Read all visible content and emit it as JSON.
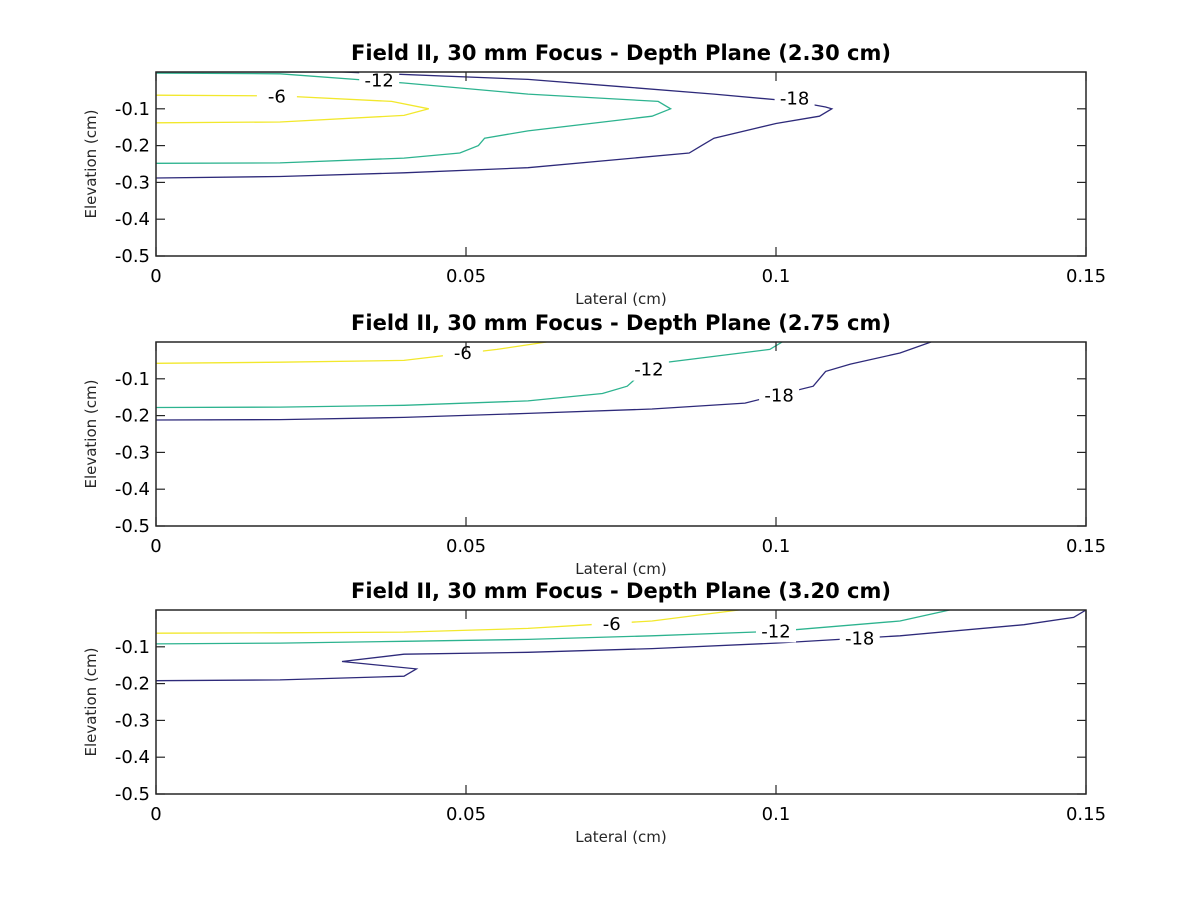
{
  "chart_data": [
    {
      "type": "contour",
      "title": "Field II, 30 mm Focus - Depth Plane (2.30 cm)",
      "xlabel": "Lateral (cm)",
      "ylabel": "Elevation (cm)",
      "xlim": [
        0,
        0.15
      ],
      "ylim": [
        -0.5,
        0
      ],
      "xticks": [
        "0",
        "0.05",
        "0.1",
        "0.15"
      ],
      "yticks": [
        "-0.1",
        "-0.2",
        "-0.3",
        "-0.4",
        "-0.5"
      ],
      "levels": [
        {
          "level": "-6",
          "color": "#F2E82C",
          "label_pos": [
            0.0195,
            -0.066
          ],
          "points": [
            [
              0,
              -0.063
            ],
            [
              0.02,
              -0.065
            ],
            [
              0.038,
              -0.08
            ],
            [
              0.044,
              -0.1
            ],
            [
              0.04,
              -0.118
            ],
            [
              0.02,
              -0.136
            ],
            [
              0,
              -0.138
            ]
          ]
        },
        {
          "level": "-12",
          "color": "#2DB38F",
          "label_pos": [
            0.036,
            -0.023
          ],
          "points": [
            [
              0,
              -0.003
            ],
            [
              0.02,
              -0.005
            ],
            [
              0.04,
              -0.03
            ],
            [
              0.06,
              -0.06
            ],
            [
              0.081,
              -0.08
            ],
            [
              0.083,
              -0.1
            ],
            [
              0.08,
              -0.12
            ],
            [
              0.06,
              -0.16
            ],
            [
              0.053,
              -0.18
            ],
            [
              0.052,
              -0.2
            ],
            [
              0.049,
              -0.22
            ],
            [
              0.04,
              -0.234
            ],
            [
              0.02,
              -0.247
            ],
            [
              0,
              -0.248
            ]
          ]
        },
        {
          "level": "-18",
          "color": "#2E2A7A",
          "label_pos": [
            0.103,
            -0.072
          ],
          "points": [
            [
              0,
              0.0
            ],
            [
              0.03,
              0.0
            ],
            [
              0.06,
              -0.02
            ],
            [
              0.075,
              -0.04
            ],
            [
              0.09,
              -0.06
            ],
            [
              0.103,
              -0.08
            ],
            [
              0.108,
              -0.095
            ],
            [
              0.109,
              -0.1
            ],
            [
              0.107,
              -0.12
            ],
            [
              0.1,
              -0.14
            ],
            [
              0.09,
              -0.18
            ],
            [
              0.088,
              -0.2
            ],
            [
              0.086,
              -0.22
            ],
            [
              0.06,
              -0.26
            ],
            [
              0.04,
              -0.274
            ],
            [
              0.02,
              -0.284
            ],
            [
              0,
              -0.288
            ]
          ]
        }
      ]
    },
    {
      "type": "contour",
      "title": "Field II, 30 mm Focus - Depth Plane (2.75 cm)",
      "xlabel": "Lateral (cm)",
      "ylabel": "Elevation (cm)",
      "xlim": [
        0,
        0.15
      ],
      "ylim": [
        -0.5,
        0
      ],
      "xticks": [
        "0",
        "0.05",
        "0.1",
        "0.15"
      ],
      "yticks": [
        "-0.1",
        "-0.2",
        "-0.3",
        "-0.4",
        "-0.5"
      ],
      "levels": [
        {
          "level": "-6",
          "color": "#F2E82C",
          "label_pos": [
            0.0495,
            -0.03
          ],
          "points": [
            [
              0,
              -0.058
            ],
            [
              0.02,
              -0.055
            ],
            [
              0.04,
              -0.05
            ],
            [
              0.055,
              -0.02
            ],
            [
              0.063,
              0.0
            ]
          ]
        },
        {
          "level": "-12",
          "color": "#2DB38F",
          "label_pos": [
            0.0795,
            -0.075
          ],
          "points": [
            [
              0,
              -0.178
            ],
            [
              0.02,
              -0.177
            ],
            [
              0.04,
              -0.172
            ],
            [
              0.06,
              -0.16
            ],
            [
              0.072,
              -0.14
            ],
            [
              0.076,
              -0.12
            ],
            [
              0.08,
              -0.06
            ],
            [
              0.099,
              -0.02
            ],
            [
              0.101,
              0.0
            ]
          ]
        },
        {
          "level": "-18",
          "color": "#2E2A7A",
          "label_pos": [
            0.1005,
            -0.145
          ],
          "points": [
            [
              0,
              -0.212
            ],
            [
              0.02,
              -0.211
            ],
            [
              0.04,
              -0.205
            ],
            [
              0.06,
              -0.194
            ],
            [
              0.08,
              -0.182
            ],
            [
              0.095,
              -0.166
            ],
            [
              0.106,
              -0.12
            ],
            [
              0.107,
              -0.1
            ],
            [
              0.108,
              -0.08
            ],
            [
              0.112,
              -0.06
            ],
            [
              0.12,
              -0.03
            ],
            [
              0.125,
              0.0
            ]
          ]
        }
      ]
    },
    {
      "type": "contour",
      "title": "Field II, 30 mm Focus - Depth Plane (3.20 cm)",
      "xlabel": "Lateral (cm)",
      "ylabel": "Elevation (cm)",
      "xlim": [
        0,
        0.15
      ],
      "ylim": [
        -0.5,
        0
      ],
      "xticks": [
        "0",
        "0.05",
        "0.1",
        "0.15"
      ],
      "yticks": [
        "-0.1",
        "-0.2",
        "-0.3",
        "-0.4",
        "-0.5"
      ],
      "levels": [
        {
          "level": "-6",
          "color": "#F2E82C",
          "label_pos": [
            0.0735,
            -0.038
          ],
          "points": [
            [
              0,
              -0.063
            ],
            [
              0.02,
              -0.062
            ],
            [
              0.04,
              -0.06
            ],
            [
              0.06,
              -0.05
            ],
            [
              0.07,
              -0.04
            ],
            [
              0.08,
              -0.03
            ],
            [
              0.094,
              0.0
            ]
          ]
        },
        {
          "level": "-12",
          "color": "#2DB38F",
          "label_pos": [
            0.1,
            -0.058
          ],
          "points": [
            [
              0,
              -0.092
            ],
            [
              0.02,
              -0.09
            ],
            [
              0.04,
              -0.085
            ],
            [
              0.06,
              -0.08
            ],
            [
              0.08,
              -0.07
            ],
            [
              0.1,
              -0.058
            ],
            [
              0.12,
              -0.03
            ],
            [
              0.128,
              0.0
            ]
          ]
        },
        {
          "level": "-18",
          "color": "#2E2A7A",
          "label_pos": [
            0.1135,
            -0.077
          ],
          "points": [
            [
              0,
              -0.192
            ],
            [
              0.02,
              -0.19
            ],
            [
              0.04,
              -0.18
            ],
            [
              0.042,
              -0.16
            ],
            [
              0.03,
              -0.14
            ],
            [
              0.04,
              -0.12
            ],
            [
              0.06,
              -0.115
            ],
            [
              0.08,
              -0.105
            ],
            [
              0.1,
              -0.09
            ],
            [
              0.12,
              -0.07
            ],
            [
              0.14,
              -0.04
            ],
            [
              0.148,
              -0.02
            ],
            [
              0.15,
              0.0
            ]
          ]
        }
      ]
    }
  ]
}
